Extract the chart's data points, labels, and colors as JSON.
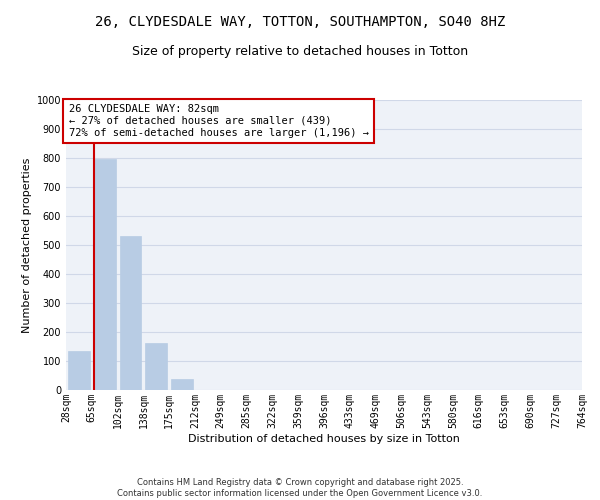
{
  "title": "26, CLYDESDALE WAY, TOTTON, SOUTHAMPTON, SO40 8HZ",
  "subtitle": "Size of property relative to detached houses in Totton",
  "bar_values": [
    135,
    795,
    530,
    162,
    38,
    0,
    0,
    0,
    0,
    0,
    0,
    0,
    0,
    0,
    0,
    0,
    0,
    0,
    0,
    0
  ],
  "categories": [
    "28sqm",
    "65sqm",
    "102sqm",
    "138sqm",
    "175sqm",
    "212sqm",
    "249sqm",
    "285sqm",
    "322sqm",
    "359sqm",
    "396sqm",
    "433sqm",
    "469sqm",
    "506sqm",
    "543sqm",
    "580sqm",
    "616sqm",
    "653sqm",
    "690sqm",
    "727sqm",
    "764sqm"
  ],
  "bar_color": "#b8cce4",
  "bar_edge_color": "#b8cce4",
  "vline_color": "#cc0000",
  "annotation_box_text": "26 CLYDESDALE WAY: 82sqm\n← 27% of detached houses are smaller (439)\n72% of semi-detached houses are larger (1,196) →",
  "annotation_box_edge_color": "#cc0000",
  "annotation_box_bg": "#ffffff",
  "xlabel": "Distribution of detached houses by size in Totton",
  "ylabel": "Number of detached properties",
  "ylim": [
    0,
    1000
  ],
  "yticks": [
    0,
    100,
    200,
    300,
    400,
    500,
    600,
    700,
    800,
    900,
    1000
  ],
  "grid_color": "#d0d8e8",
  "bg_color": "#eef2f8",
  "footer_text": "Contains HM Land Registry data © Crown copyright and database right 2025.\nContains public sector information licensed under the Open Government Licence v3.0.",
  "title_fontsize": 10,
  "subtitle_fontsize": 9,
  "axis_label_fontsize": 8,
  "tick_fontsize": 7,
  "annotation_fontsize": 7.5,
  "footer_fontsize": 6
}
